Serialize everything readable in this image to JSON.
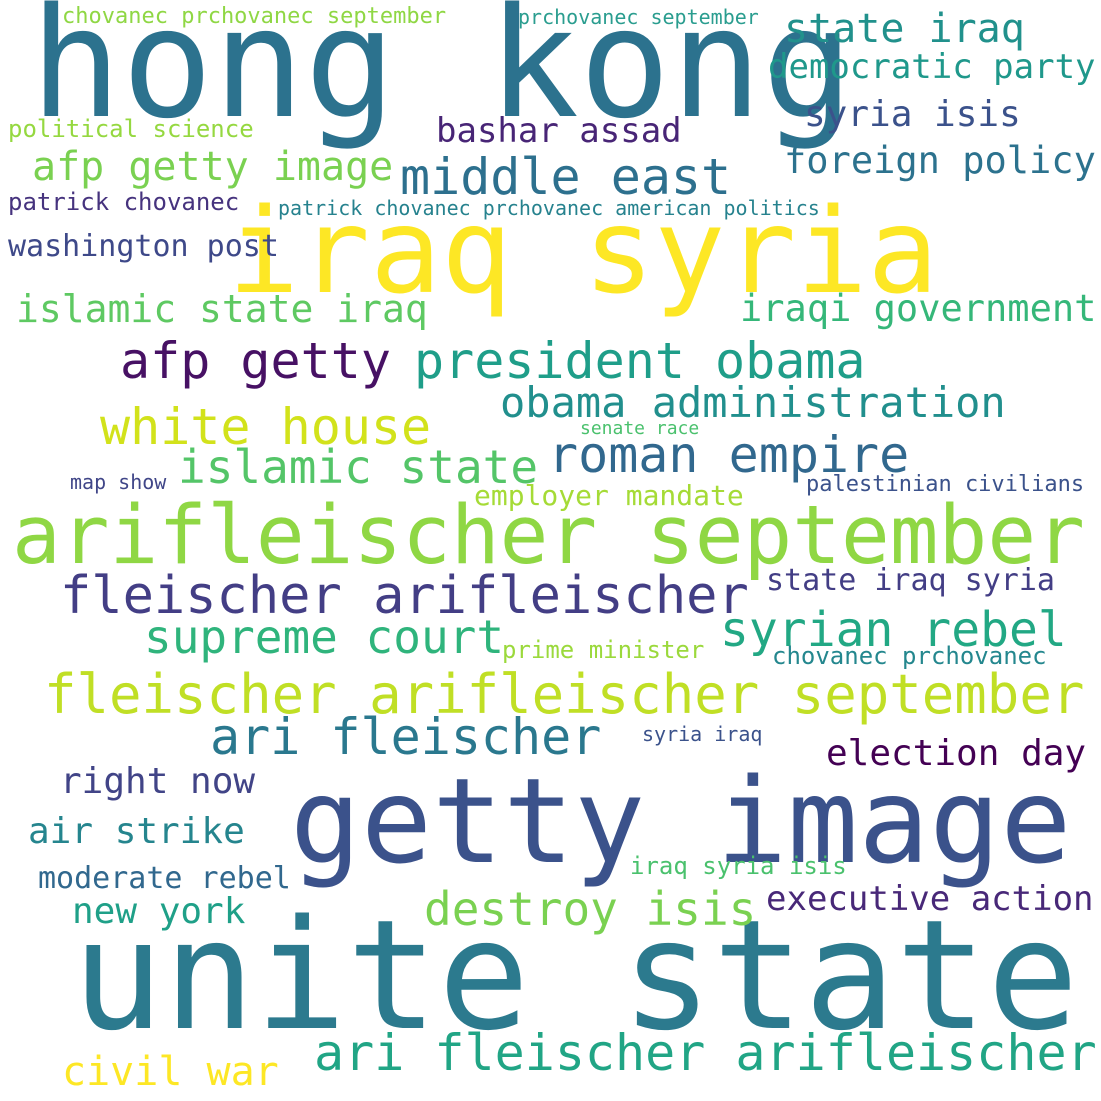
{
  "words": [
    {
      "text": "hong kong",
      "color": "#2c728e"
    },
    {
      "text": "iraq syria",
      "color": "#fde725"
    },
    {
      "text": "getty image",
      "color": "#3b528b"
    },
    {
      "text": "unite state",
      "color": "#2c7a8e"
    },
    {
      "text": "arifleischer september",
      "color": "#8fd744"
    },
    {
      "text": "fleischer arifleischer september",
      "color": "#c0df25"
    },
    {
      "text": "ari fleischer arifleischer",
      "color": "#21a585"
    },
    {
      "text": "fleischer arifleischer",
      "color": "#433e85"
    },
    {
      "text": "middle east",
      "color": "#2d708e"
    },
    {
      "text": "afp getty image",
      "color": "#7ad151"
    },
    {
      "text": "state iraq",
      "color": "#21918c"
    },
    {
      "text": "democratic party",
      "color": "#1f988b"
    },
    {
      "text": "syria isis",
      "color": "#3b528b"
    },
    {
      "text": "bashar assad",
      "color": "#482576"
    },
    {
      "text": "foreign policy",
      "color": "#2c728e"
    },
    {
      "text": "political science",
      "color": "#95d840"
    },
    {
      "text": "patrick chovanec",
      "color": "#46337e"
    },
    {
      "text": "patrick chovanec prchovanec american politics",
      "color": "#26828e"
    },
    {
      "text": "washington post",
      "color": "#3e4989"
    },
    {
      "text": "islamic state iraq",
      "color": "#5ec962"
    },
    {
      "text": "iraqi government",
      "color": "#35b779"
    },
    {
      "text": "afp getty",
      "color": "#471164"
    },
    {
      "text": "president obama",
      "color": "#1f9e89"
    },
    {
      "text": "obama administration",
      "color": "#218f8d"
    },
    {
      "text": "white house",
      "color": "#d2e21b"
    },
    {
      "text": "islamic state",
      "color": "#54c568"
    },
    {
      "text": "roman empire",
      "color": "#31688e"
    },
    {
      "text": "senate race",
      "color": "#4ac16d"
    },
    {
      "text": "map show",
      "color": "#404688"
    },
    {
      "text": "employer mandate",
      "color": "#a5db36"
    },
    {
      "text": "palestinian civilians",
      "color": "#3b528b"
    },
    {
      "text": "state iraq syria",
      "color": "#433e85"
    },
    {
      "text": "supreme court",
      "color": "#2fb47c"
    },
    {
      "text": "syrian rebel",
      "color": "#22a884"
    },
    {
      "text": "prime minister",
      "color": "#9bd93c"
    },
    {
      "text": "chovanec prchovanec",
      "color": "#24878e"
    },
    {
      "text": "ari fleischer",
      "color": "#2a788e"
    },
    {
      "text": "syria iraq",
      "color": "#3b528b"
    },
    {
      "text": "election day",
      "color": "#440154"
    },
    {
      "text": "right now",
      "color": "#414487"
    },
    {
      "text": "air strike",
      "color": "#25858e"
    },
    {
      "text": "moderate rebel",
      "color": "#31688e"
    },
    {
      "text": "iraq syria isis",
      "color": "#4ac16d"
    },
    {
      "text": "new york",
      "color": "#1fa088"
    },
    {
      "text": "destroy isis",
      "color": "#7ad151"
    },
    {
      "text": "executive action",
      "color": "#482878"
    },
    {
      "text": "civil war",
      "color": "#fde725"
    },
    {
      "text": "chovanec prchovanec september",
      "color": "#8fd744"
    },
    {
      "text": "prchovanec september",
      "color": "#2a9d8f"
    }
  ]
}
